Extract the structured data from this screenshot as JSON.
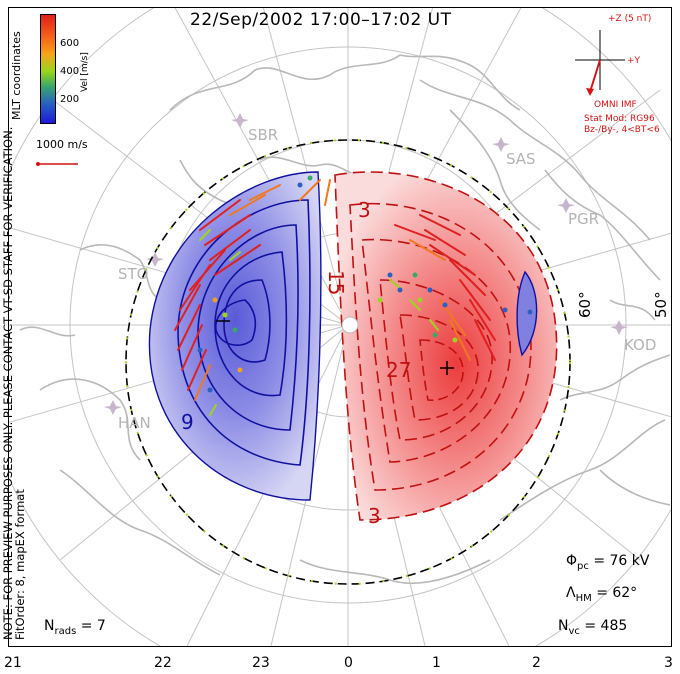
{
  "title": "22/Sep/2002 17:00–17:02 UT",
  "note_lines": [
    "NOTE: FOR PREVIEW PURPOSES ONLY. PLEASE CONTACT VT-SD STAFF FOR VERIFICATION.",
    "FitOrder: 8, mapEX format"
  ],
  "coord_label": "MLT coordinates",
  "colorbar": {
    "unit": "Vel [m/s]",
    "ticks": [
      "600",
      "400",
      "200"
    ]
  },
  "scale_vector": "1000 m/s",
  "imf": {
    "plus_z": "+Z (5 nT)",
    "plus_y": "+Y",
    "source": "OMNI IMF",
    "model_line1": "Stat Mod: RG96",
    "model_line2": "Bz-/By-, 4<BT<6"
  },
  "stations": [
    "SBR",
    "SAS",
    "PGR",
    "STO",
    "KOD",
    "HAN"
  ],
  "latitude_labels": [
    "60°",
    "50°"
  ],
  "contour_labels": [
    "3",
    "15",
    "27",
    "9",
    "3"
  ],
  "extrema": {
    "min": "−",
    "max": "+"
  },
  "stats": {
    "phi_pc_symbol": "Φ",
    "phi_pc_sub": "pc",
    "phi_pc_value": "= 76 kV",
    "lambda_symbol": "Λ",
    "lambda_sub": "HM",
    "lambda_value": "= 62°",
    "nvc_symbol": "N",
    "nvc_sub": "vc",
    "nvc_value": "= 485",
    "nrads_symbol": "N",
    "nrads_sub": "rads",
    "nrads_value": "= 7"
  },
  "mlt_ticks": [
    "21",
    "22",
    "23",
    "0",
    "1",
    "2",
    "3"
  ],
  "colors": {
    "negative_cell": "#7070e0",
    "positive_cell": "#f05050",
    "negative_contour": "#1010a0",
    "positive_contour": "#c01010",
    "imf_red": "#d41414",
    "grid": "#bfbfbf",
    "coast": "#b4b4b4",
    "hmb": "#000000"
  }
}
